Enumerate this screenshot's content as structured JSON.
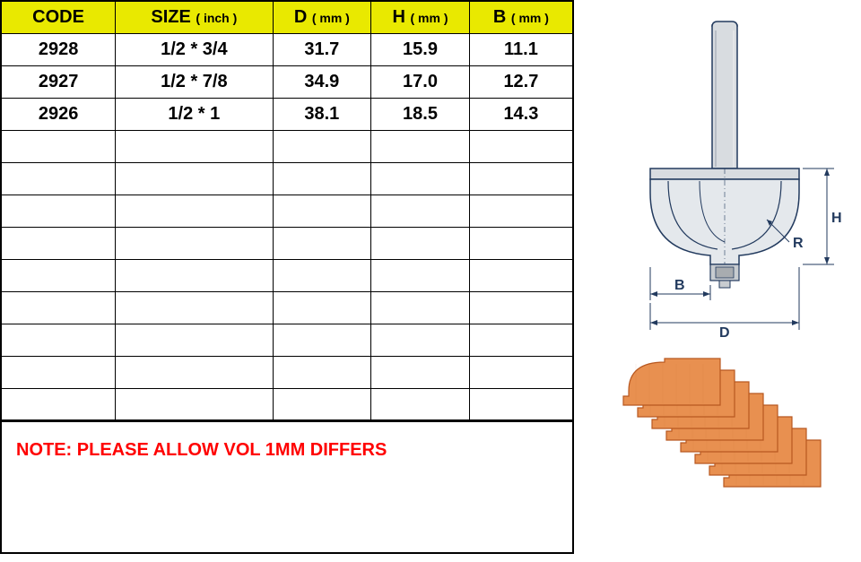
{
  "table": {
    "headers": {
      "code": {
        "label": "CODE",
        "unit": ""
      },
      "size": {
        "label": "SIZE",
        "unit": "( inch )"
      },
      "d": {
        "label": "D",
        "unit": "( mm )"
      },
      "h": {
        "label": "H",
        "unit": "( mm )"
      },
      "b": {
        "label": "B",
        "unit": "( mm )"
      }
    },
    "rows": [
      {
        "code": "2928",
        "size": "1/2 * 3/4",
        "d": "31.7",
        "h": "15.9",
        "b": "11.1"
      },
      {
        "code": "2927",
        "size": "1/2 * 7/8",
        "d": "34.9",
        "h": "17.0",
        "b": "12.7"
      },
      {
        "code": "2926",
        "size": "1/2 * 1",
        "d": "38.1",
        "h": "18.5",
        "b": "14.3"
      }
    ],
    "empty_row_count": 9,
    "header_bg": "#e9e900",
    "border_color": "#000000"
  },
  "note": {
    "text": "NOTE:  PLEASE ALLOW VOL 1MM DIFFERS",
    "color": "#ff0000"
  },
  "diagram": {
    "labels": {
      "D": "D",
      "H": "H",
      "B": "B",
      "R": "R"
    },
    "colors": {
      "outline": "#223a5e",
      "fill_body": "#d0d4d8",
      "fill_bearing": "#c0c0c0",
      "dim_line": "#223a5e"
    }
  },
  "profile": {
    "fill_color": "#e89050",
    "outline_color": "#b85820",
    "step_count": 8
  }
}
